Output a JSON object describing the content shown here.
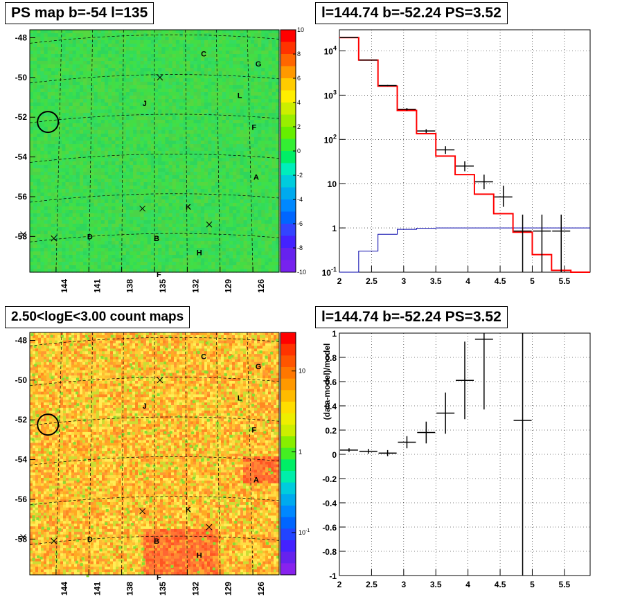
{
  "titles": {
    "top_left": "PS map b=-54 l=135",
    "top_right": "l=144.74 b=-52.24 PS=3.52",
    "bottom_left": "2.50<logE<3.00 count maps",
    "bottom_right": "l=144.74 b=-52.24 PS=3.52"
  },
  "colors": {
    "map_green": "#33dd55",
    "data_black": "#000000",
    "model_red": "#ff0000",
    "bkg_blue": "#0000aa"
  },
  "chart_data": [
    {
      "type": "heatmap",
      "title": "PS map b=-54 l=135",
      "yticks": [
        "-48",
        "-50",
        "-52",
        "-54",
        "-56",
        "-58"
      ],
      "xticks": [
        "144",
        "141",
        "138",
        "135",
        "132",
        "129",
        "126"
      ],
      "colorbar": {
        "min": -10,
        "max": 10,
        "scale": "linear",
        "ticks": [
          "10",
          "8",
          "6",
          "4",
          "2",
          "0",
          "-2",
          "-4",
          "-6",
          "-8",
          "-10"
        ]
      },
      "sources": [
        {
          "label": "C",
          "l": 130.5,
          "b": -48.8
        },
        {
          "label": "G",
          "l": 125.5,
          "b": -49.3
        },
        {
          "label": "J",
          "l": 135.9,
          "b": -51.3
        },
        {
          "label": "L",
          "l": 127.2,
          "b": -50.9
        },
        {
          "label": "F",
          "l": 125.9,
          "b": -52.5
        },
        {
          "label": "A",
          "l": 125.7,
          "b": -55.0
        },
        {
          "label": "K",
          "l": 131.9,
          "b": -56.5
        },
        {
          "label": "D",
          "l": 140.9,
          "b": -58.0
        },
        {
          "label": "B",
          "l": 134.8,
          "b": -58.1
        },
        {
          "label": "H",
          "l": 130.9,
          "b": -58.8
        },
        {
          "label": "F",
          "l": 134.6,
          "b": -59.9
        }
      ],
      "crosses": [
        {
          "l": 134.5,
          "b": -50.0
        },
        {
          "l": 136.1,
          "b": -56.6
        },
        {
          "l": 130.0,
          "b": -57.4
        },
        {
          "l": 147.0,
          "b": -57.9
        },
        {
          "l": 144.2,
          "b": -58.1
        }
      ],
      "circle": {
        "l": 144.74,
        "b": -52.24
      }
    },
    {
      "type": "line",
      "title": "l=144.74 b=-52.24 PS=3.52",
      "xlabel": "",
      "ylabel": "",
      "xlim": [
        2,
        5.9
      ],
      "ylim": [
        0.1,
        30000
      ],
      "yscale": "log",
      "grid": true,
      "xticks": [
        "2",
        "2.5",
        "3",
        "3.5",
        "4",
        "4.5",
        "5",
        "5.5"
      ],
      "yticks": [
        "10^-1",
        "1",
        "10",
        "10^2",
        "10^3",
        "10^4"
      ],
      "series": [
        {
          "kind": "step",
          "edges": [
            2,
            2.3,
            2.6,
            2.9,
            3.2,
            3.5,
            3.8,
            4.1,
            4.4,
            4.7,
            5.0,
            5.3,
            5.6,
            5.9
          ],
          "values": [
            20000,
            6200,
            1600,
            450,
            135,
            42,
            16,
            5.8,
            2.1,
            0.8,
            0.25,
            0.11,
            0.09
          ]
        },
        {
          "kind": "step",
          "edges": [
            2,
            2.3,
            2.6,
            2.9,
            3.2,
            3.5,
            3.8,
            4.1,
            4.4,
            4.7,
            5.0,
            5.3,
            5.6,
            5.9
          ],
          "values": [
            0.1,
            0.3,
            0.72,
            0.93,
            0.98,
            1,
            1,
            1,
            1,
            1,
            1,
            1,
            1
          ]
        },
        {
          "kind": "points",
          "x": [
            2.15,
            2.45,
            2.75,
            3.05,
            3.35,
            3.65,
            3.95,
            4.25,
            4.55,
            4.85,
            5.15,
            5.45
          ],
          "y": [
            20000,
            6200,
            1650,
            480,
            155,
            58,
            25,
            11,
            5,
            0.85,
            0.85,
            0.85
          ],
          "yerr_low": [
            20000,
            6100,
            1600,
            450,
            140,
            47,
            19,
            7.5,
            3.0,
            0.1,
            0.1,
            0.1
          ],
          "yerr_high": [
            20500,
            6300,
            1700,
            510,
            170,
            70,
            32,
            16,
            9,
            2,
            2,
            2
          ]
        }
      ]
    },
    {
      "type": "heatmap",
      "title": "2.50<logE<3.00 count maps",
      "yticks": [
        "-48",
        "-50",
        "-52",
        "-54",
        "-56",
        "-58"
      ],
      "xticks": [
        "144",
        "141",
        "138",
        "135",
        "132",
        "129",
        "126"
      ],
      "colorbar": {
        "scale": "log",
        "min": 0.03,
        "max": 30,
        "ticks": [
          "10",
          "1",
          "10^-1"
        ]
      },
      "sources": [
        {
          "label": "C",
          "l": 130.5,
          "b": -48.8
        },
        {
          "label": "G",
          "l": 125.5,
          "b": -49.3
        },
        {
          "label": "J",
          "l": 135.9,
          "b": -51.3
        },
        {
          "label": "L",
          "l": 127.2,
          "b": -50.9
        },
        {
          "label": "F",
          "l": 125.9,
          "b": -52.5
        },
        {
          "label": "A",
          "l": 125.7,
          "b": -55.0
        },
        {
          "label": "K",
          "l": 131.9,
          "b": -56.5
        },
        {
          "label": "D",
          "l": 140.9,
          "b": -58.0
        },
        {
          "label": "B",
          "l": 134.8,
          "b": -58.1
        },
        {
          "label": "H",
          "l": 130.9,
          "b": -58.8
        },
        {
          "label": "F",
          "l": 134.6,
          "b": -59.9
        }
      ],
      "crosses": [
        {
          "l": 134.5,
          "b": -50.0
        },
        {
          "l": 136.1,
          "b": -56.6
        },
        {
          "l": 130.0,
          "b": -57.4
        },
        {
          "l": 147.0,
          "b": -57.9
        },
        {
          "l": 144.2,
          "b": -58.1
        }
      ],
      "circle": {
        "l": 144.74,
        "b": -52.24
      }
    },
    {
      "type": "scatter",
      "title": "l=144.74 b=-52.24 PS=3.52",
      "xlabel": "",
      "ylabel": "(data-model)/model",
      "xlim": [
        2,
        5.9
      ],
      "ylim": [
        -1,
        1
      ],
      "grid": true,
      "xticks": [
        "2",
        "2.5",
        "3",
        "3.5",
        "4",
        "4.5",
        "5",
        "5.5"
      ],
      "yticks": [
        "1",
        "0.8",
        "0.6",
        "0.4",
        "0.2",
        "0",
        "-0.2",
        "-0.4",
        "-0.6",
        "-0.8",
        "-1"
      ],
      "x": [
        2.15,
        2.45,
        2.75,
        3.05,
        3.35,
        3.65,
        3.95,
        4.25,
        4.85
      ],
      "y": [
        0.035,
        0.025,
        0.01,
        0.1,
        0.18,
        0.34,
        0.61,
        0.95,
        0.28
      ],
      "yerr": [
        0.015,
        0.02,
        0.025,
        0.05,
        0.09,
        0.17,
        0.32,
        0.58,
        1.3
      ]
    }
  ]
}
